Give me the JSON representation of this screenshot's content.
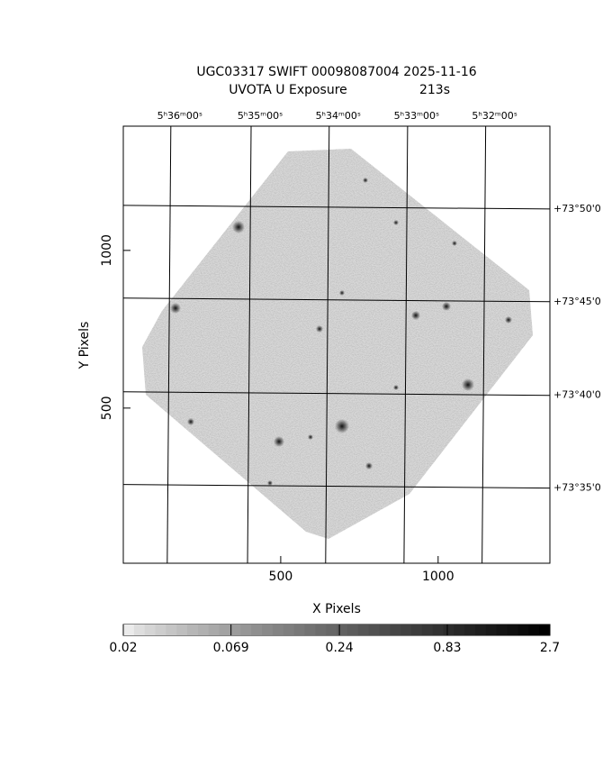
{
  "chart_data": {
    "type": "image",
    "title": "UGC03317 SWIFT 00098087004 2025-11-16",
    "subtitle": "UVOTA U Exposure",
    "exposure": "213s",
    "x_label": "X Pixels",
    "y_label": "Y Pixels",
    "xlim": [
      0,
      1355
    ],
    "ylim": [
      8,
      1394
    ],
    "xticks": [
      500,
      1000
    ],
    "yticks": [
      500,
      1000
    ],
    "ra_ticks": [
      {
        "value": 151,
        "label": "5ʰ36ᵐ00ˢ"
      },
      {
        "value": 406,
        "label": "5ʰ35ᵐ00ˢ"
      },
      {
        "value": 654,
        "label": "5ʰ34ᵐ00ˢ"
      },
      {
        "value": 903,
        "label": "5ʰ33ᵐ00ˢ"
      },
      {
        "value": 1151,
        "label": "5ʰ32ᵐ00ˢ"
      }
    ],
    "dec_ticks": [
      {
        "value": 1137,
        "label": "+73°50'0"
      },
      {
        "value": 843,
        "label": "+73°45'0"
      },
      {
        "value": 546,
        "label": "+73°40'0"
      },
      {
        "value": 252,
        "label": "+73°35'0"
      }
    ],
    "colorbar": {
      "lim": [
        0.02,
        2.7
      ],
      "ticks": [
        0.02,
        0.069,
        0.24,
        0.83,
        2.7
      ],
      "log": true
    }
  }
}
